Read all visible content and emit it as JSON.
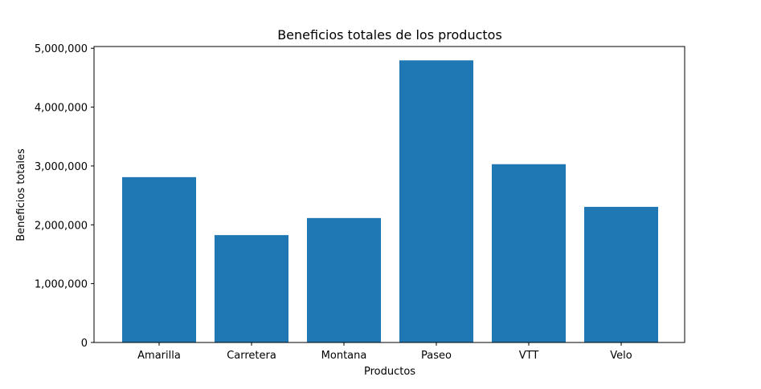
{
  "chart_data": {
    "type": "bar",
    "title": "Beneficios totales de los productos",
    "xlabel": "Productos",
    "ylabel": "Beneficios totales",
    "categories": [
      "Amarilla",
      "Carretera",
      "Montana",
      "Paseo",
      "VTT",
      "Velo"
    ],
    "values": [
      2810000,
      1825000,
      2115000,
      4795000,
      3030000,
      2305000
    ],
    "ylim": [
      0,
      5030000
    ],
    "yticks": [
      0,
      1000000,
      2000000,
      3000000,
      4000000,
      5000000
    ],
    "ytick_labels": [
      "0",
      "1,000,000",
      "2,000,000",
      "3,000,000",
      "4,000,000",
      "5,000,000"
    ],
    "bar_color": "#1f77b4",
    "grid": false,
    "legend": false
  }
}
